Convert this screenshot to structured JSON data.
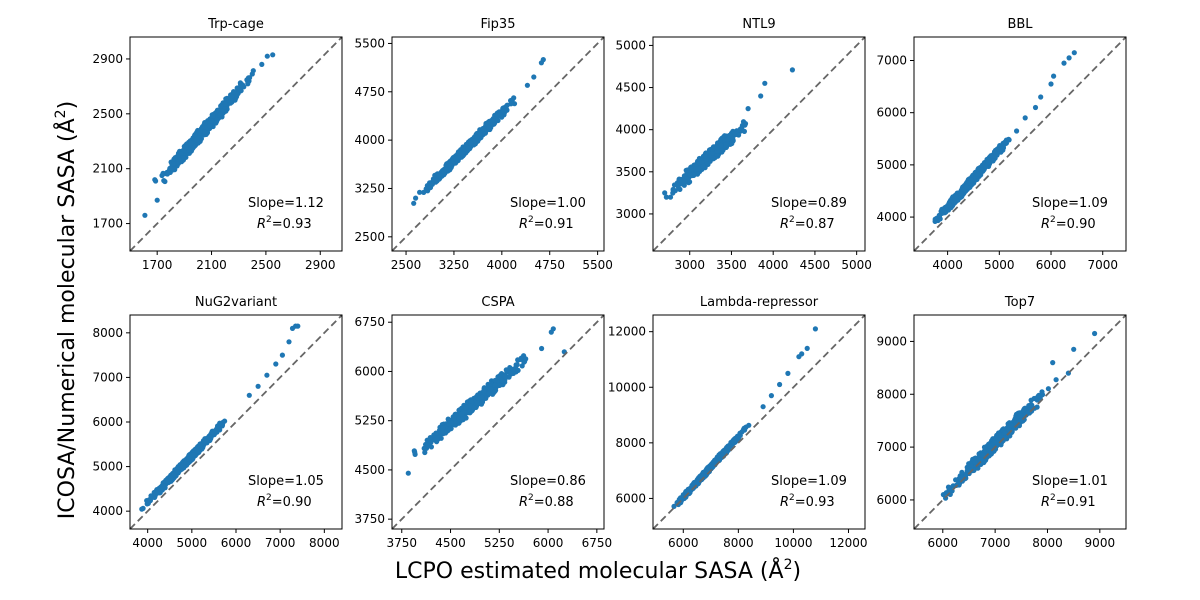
{
  "figure": {
    "xlabel_main": "LCPO estimated molecular SASA (Å",
    "xlabel_sup": "2",
    "xlabel_close": ")",
    "ylabel_main": "ICOSA/Numerical molecular SASA (Å",
    "ylabel_sup": "2",
    "ylabel_close": ")",
    "point_color": "#1f77b4",
    "diagonal_color": "#666666"
  },
  "chart_data": [
    {
      "type": "scatter",
      "title": "Trp-cage",
      "lim": [
        1500,
        3060
      ],
      "ticks": [
        1700,
        2100,
        2500,
        2900
      ],
      "slope_text": "Slope=1.12",
      "r2_value": "=0.93",
      "cloud": {
        "x_start": 1650,
        "x_end": 2450,
        "slope": 1.12,
        "offset": 90,
        "spread": 55
      },
      "outliers": [
        [
          1610,
          1760
        ],
        [
          1700,
          1870
        ],
        [
          2400,
          2790
        ],
        [
          2470,
          2860
        ],
        [
          2510,
          2920
        ],
        [
          2550,
          2930
        ]
      ]
    },
    {
      "type": "scatter",
      "title": "Fip35",
      "lim": [
        2280,
        5600
      ],
      "ticks": [
        2500,
        3250,
        4000,
        4750,
        5500
      ],
      "slope_text": "Slope=1.00",
      "r2_value": "=0.91",
      "cloud": {
        "x_start": 2620,
        "x_end": 4300,
        "slope": 1.0,
        "offset": 430,
        "spread": 80
      },
      "outliers": [
        [
          2620,
          3020
        ],
        [
          2650,
          3100
        ],
        [
          4400,
          4850
        ],
        [
          4500,
          4980
        ],
        [
          4620,
          5200
        ],
        [
          4650,
          5250
        ]
      ]
    },
    {
      "type": "scatter",
      "title": "NTL9",
      "lim": [
        2560,
        5100
      ],
      "ticks": [
        3000,
        3500,
        4000,
        4500,
        5000
      ],
      "slope_text": "Slope=0.89",
      "r2_value": "=0.87",
      "cloud": {
        "x_start": 2720,
        "x_end": 3750,
        "slope": 0.89,
        "offset": 800,
        "spread": 95
      },
      "outliers": [
        [
          2700,
          3250
        ],
        [
          2720,
          3200
        ],
        [
          3700,
          4250
        ],
        [
          3850,
          4400
        ],
        [
          3900,
          4550
        ],
        [
          4230,
          4710
        ]
      ]
    },
    {
      "type": "scatter",
      "title": "BBL",
      "lim": [
        3350,
        7450
      ],
      "ticks": [
        4000,
        5000,
        6000,
        7000
      ],
      "slope_text": "Slope=1.09",
      "r2_value": "=0.90",
      "cloud": {
        "x_start": 3550,
        "x_end": 5400,
        "slope": 1.09,
        "offset": -170,
        "spread": 100
      },
      "outliers": [
        [
          5500,
          5900
        ],
        [
          5700,
          6100
        ],
        [
          5800,
          6300
        ],
        [
          6000,
          6550
        ],
        [
          6050,
          6700
        ],
        [
          6250,
          6950
        ],
        [
          6350,
          7050
        ],
        [
          6450,
          7150
        ]
      ]
    },
    {
      "type": "scatter",
      "title": "NuG2variant",
      "lim": [
        3600,
        8400
      ],
      "ticks": [
        4000,
        5000,
        6000,
        7000,
        8000
      ],
      "slope_text": "Slope=1.05",
      "r2_value": "=0.90",
      "cloud": {
        "x_start": 3750,
        "x_end": 6000,
        "slope": 1.05,
        "offset": -10,
        "spread": 95
      },
      "outliers": [
        [
          6300,
          6600
        ],
        [
          6500,
          6800
        ],
        [
          6700,
          7050
        ],
        [
          6900,
          7300
        ],
        [
          7050,
          7500
        ],
        [
          7200,
          7800
        ],
        [
          7280,
          8100
        ],
        [
          7350,
          8150
        ],
        [
          7400,
          8150
        ]
      ]
    },
    {
      "type": "scatter",
      "title": "CSPA",
      "lim": [
        3600,
        6860
      ],
      "ticks": [
        3750,
        4500,
        5250,
        6000,
        6750
      ],
      "slope_text": "Slope=0.86",
      "r2_value": "=0.88",
      "cloud": {
        "x_start": 3850,
        "x_end": 5800,
        "slope": 0.86,
        "offset": 1330,
        "spread": 120
      },
      "outliers": [
        [
          3850,
          4450
        ],
        [
          5900,
          6350
        ],
        [
          6050,
          6600
        ],
        [
          6080,
          6650
        ],
        [
          6250,
          6300
        ]
      ]
    },
    {
      "type": "scatter",
      "title": "Lambda-repressor",
      "lim": [
        4900,
        12600
      ],
      "ticks": [
        6000,
        8000,
        10000,
        12000
      ],
      "slope_text": "Slope=1.09",
      "r2_value": "=0.93",
      "cloud": {
        "x_start": 5400,
        "x_end": 8500,
        "slope": 1.09,
        "offset": -500,
        "spread": 120
      },
      "outliers": [
        [
          8900,
          9300
        ],
        [
          9200,
          9700
        ],
        [
          9500,
          10100
        ],
        [
          9800,
          10500
        ],
        [
          10200,
          11100
        ],
        [
          10300,
          11200
        ],
        [
          10500,
          11400
        ],
        [
          10800,
          12100
        ]
      ]
    },
    {
      "type": "scatter",
      "title": "Top7",
      "lim": [
        5450,
        9500
      ],
      "ticks": [
        6000,
        7000,
        8000,
        9000
      ],
      "slope_text": "Slope=1.01",
      "r2_value": "=0.91",
      "cloud": {
        "x_start": 5850,
        "x_end": 8200,
        "slope": 1.01,
        "offset": 0,
        "spread": 150
      },
      "outliers": [
        [
          8100,
          8600
        ],
        [
          8400,
          8400
        ],
        [
          8500,
          8850
        ],
        [
          8900,
          9150
        ]
      ]
    }
  ]
}
